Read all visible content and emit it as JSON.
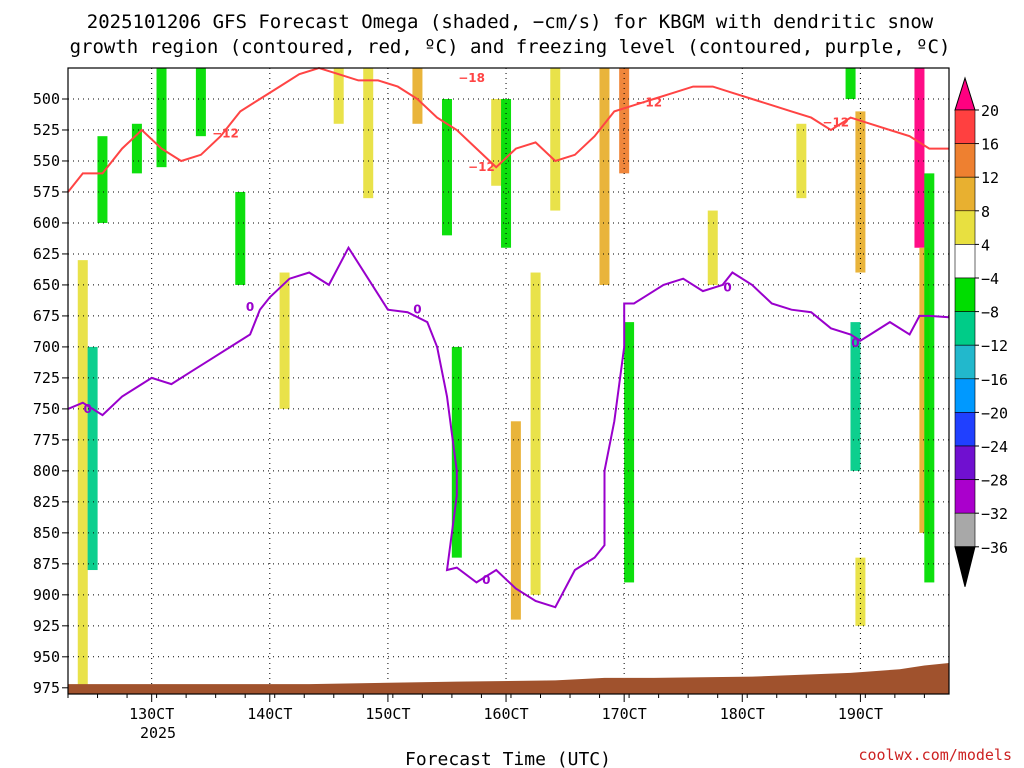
{
  "title": {
    "line1": "2025101206 GFS Forecast Omega (shaded, −cm/s) for KBGM with dendritic snow",
    "line2": "growth region (contoured, red, ºC) and freezing level (contoured, purple, ºC)"
  },
  "xlabel": "Forecast Time (UTC)",
  "year_label": "2025",
  "credit": "coolwx.com/models",
  "chart_data": {
    "type": "heatmap",
    "x_ticks": [
      {
        "label": "130CT",
        "hour": 18
      },
      {
        "label": "140CT",
        "hour": 42
      },
      {
        "label": "150CT",
        "hour": 66
      },
      {
        "label": "160CT",
        "hour": 90
      },
      {
        "label": "170CT",
        "hour": 114
      },
      {
        "label": "180CT",
        "hour": 138
      },
      {
        "label": "190CT",
        "hour": 162
      }
    ],
    "xlim": [
      1,
      180
    ],
    "y_ticks": [
      500,
      525,
      550,
      575,
      600,
      625,
      650,
      675,
      700,
      725,
      750,
      775,
      800,
      825,
      850,
      875,
      900,
      925,
      950,
      975
    ],
    "ylim": [
      475,
      980
    ],
    "colorbar": {
      "levels": [
        "20",
        "16",
        "12",
        "8",
        "4",
        "−4",
        "−8",
        "−12",
        "−16",
        "−20",
        "−24",
        "−28",
        "−32",
        "−36"
      ],
      "colors": [
        "#ff0080",
        "#ff4040",
        "#ee8030",
        "#e8b030",
        "#e8e040",
        "#ffffff",
        "#00dd00",
        "#00cc88",
        "#22b8cc",
        "#0099ff",
        "#2040ff",
        "#7010d0",
        "#aa00cc",
        "#a8a8a8",
        "#000000"
      ]
    },
    "shading": [
      {
        "hour": 4,
        "p": [
          630,
          980
        ],
        "v": 6
      },
      {
        "hour": 6,
        "p": [
          700,
          880
        ],
        "v": -12
      },
      {
        "hour": 8,
        "p": [
          530,
          600
        ],
        "v": -8
      },
      {
        "hour": 15,
        "p": [
          520,
          560
        ],
        "v": -8
      },
      {
        "hour": 20,
        "p": [
          475,
          555
        ],
        "v": -8
      },
      {
        "hour": 28,
        "p": [
          475,
          530
        ],
        "v": -8
      },
      {
        "hour": 36,
        "p": [
          575,
          650
        ],
        "v": -8
      },
      {
        "hour": 45,
        "p": [
          640,
          750
        ],
        "v": 6
      },
      {
        "hour": 56,
        "p": [
          475,
          520
        ],
        "v": 6
      },
      {
        "hour": 62,
        "p": [
          475,
          580
        ],
        "v": 6
      },
      {
        "hour": 72,
        "p": [
          475,
          520
        ],
        "v": 10
      },
      {
        "hour": 78,
        "p": [
          500,
          610
        ],
        "v": -8
      },
      {
        "hour": 80,
        "p": [
          700,
          870
        ],
        "v": -8
      },
      {
        "hour": 88,
        "p": [
          500,
          570
        ],
        "v": 6
      },
      {
        "hour": 90,
        "p": [
          500,
          620
        ],
        "v": -8
      },
      {
        "hour": 92,
        "p": [
          760,
          920
        ],
        "v": 10
      },
      {
        "hour": 96,
        "p": [
          640,
          900
        ],
        "v": 6
      },
      {
        "hour": 100,
        "p": [
          475,
          590
        ],
        "v": 6
      },
      {
        "hour": 110,
        "p": [
          475,
          650
        ],
        "v": 10
      },
      {
        "hour": 114,
        "p": [
          475,
          560
        ],
        "v": 14
      },
      {
        "hour": 115,
        "p": [
          680,
          890
        ],
        "v": -8
      },
      {
        "hour": 132,
        "p": [
          590,
          650
        ],
        "v": 6
      },
      {
        "hour": 150,
        "p": [
          520,
          580
        ],
        "v": 6
      },
      {
        "hour": 160,
        "p": [
          475,
          500
        ],
        "v": -8
      },
      {
        "hour": 162,
        "p": [
          510,
          640
        ],
        "v": 8
      },
      {
        "hour": 161,
        "p": [
          680,
          800
        ],
        "v": -14
      },
      {
        "hour": 162,
        "p": [
          870,
          925
        ],
        "v": 6
      },
      {
        "hour": 174,
        "p": [
          475,
          620
        ],
        "v": 22
      },
      {
        "hour": 175,
        "p": [
          620,
          850
        ],
        "v": 10
      },
      {
        "hour": 176,
        "p": [
          560,
          890
        ],
        "v": -8
      }
    ],
    "series": [
      {
        "name": "freezing level",
        "unit": "ºC",
        "color": "#9900cc",
        "level_label": "0",
        "x": [
          1,
          4,
          8,
          12,
          16,
          18,
          22,
          26,
          30,
          34,
          38,
          40,
          42,
          46,
          50,
          54,
          56,
          58,
          62,
          66,
          70,
          74,
          76,
          78,
          80,
          80,
          78,
          80,
          84,
          88,
          92,
          96,
          100,
          104,
          108,
          110,
          110,
          112,
          114,
          114,
          116,
          118,
          122,
          126,
          130,
          134,
          136,
          140,
          144,
          148,
          152,
          156,
          160,
          162,
          164,
          168,
          172,
          174,
          176,
          180
        ],
        "y": [
          750,
          745,
          755,
          740,
          730,
          725,
          730,
          720,
          710,
          700,
          690,
          670,
          660,
          645,
          640,
          650,
          635,
          620,
          645,
          670,
          672,
          680,
          700,
          740,
          800,
          820,
          880,
          878,
          890,
          880,
          895,
          905,
          910,
          880,
          870,
          860,
          800,
          760,
          700,
          665,
          665,
          660,
          650,
          645,
          655,
          650,
          640,
          650,
          665,
          670,
          672,
          685,
          690,
          695,
          690,
          680,
          690,
          675,
          675,
          676
        ]
      },
      {
        "name": "dendritic snow growth region",
        "unit": "ºC",
        "color": "#ff4444",
        "level_label": "−12",
        "x": [
          1,
          4,
          8,
          12,
          16,
          20,
          24,
          28,
          32,
          36,
          40,
          44,
          48,
          52,
          56,
          60,
          64,
          68,
          72,
          76,
          80,
          84,
          88,
          92,
          96,
          100,
          104,
          108,
          112,
          116,
          120,
          124,
          128,
          132,
          136,
          140,
          144,
          148,
          152,
          156,
          160,
          164,
          168,
          172,
          176,
          180
        ],
        "y": [
          575,
          560,
          560,
          540,
          525,
          540,
          550,
          545,
          530,
          510,
          500,
          490,
          480,
          475,
          480,
          485,
          485,
          490,
          500,
          515,
          525,
          540,
          555,
          540,
          535,
          550,
          545,
          530,
          510,
          505,
          500,
          495,
          490,
          490,
          495,
          500,
          505,
          510,
          515,
          525,
          515,
          520,
          525,
          530,
          540,
          540
        ]
      }
    ],
    "contour_labels": [
      {
        "text": "0",
        "hour": 5,
        "p": 750,
        "color": "#9900cc"
      },
      {
        "text": "0",
        "hour": 38,
        "p": 668,
        "color": "#9900cc"
      },
      {
        "text": "0",
        "hour": 72,
        "p": 670,
        "color": "#9900cc"
      },
      {
        "text": "0",
        "hour": 86,
        "p": 888,
        "color": "#9900cc"
      },
      {
        "text": "0",
        "hour": 135,
        "p": 652,
        "color": "#9900cc"
      },
      {
        "text": "0",
        "hour": 161,
        "p": 697,
        "color": "#9900cc"
      },
      {
        "text": "−12",
        "hour": 33,
        "p": 528,
        "color": "#ff4444"
      },
      {
        "text": "−18",
        "hour": 83,
        "p": 483,
        "color": "#ff4444"
      },
      {
        "text": "−12",
        "hour": 85,
        "p": 555,
        "color": "#ff4444"
      },
      {
        "text": "−12",
        "hour": 119,
        "p": 503,
        "color": "#ff4444"
      },
      {
        "text": "−12",
        "hour": 157,
        "p": 519,
        "color": "#ff4444"
      }
    ],
    "terrain_color": "#a0522d",
    "surface": {
      "x": [
        1,
        50,
        80,
        100,
        110,
        120,
        140,
        160,
        170,
        175,
        180
      ],
      "p": [
        972,
        972,
        970,
        969,
        967,
        967,
        966,
        963,
        960,
        957,
        955
      ]
    }
  }
}
